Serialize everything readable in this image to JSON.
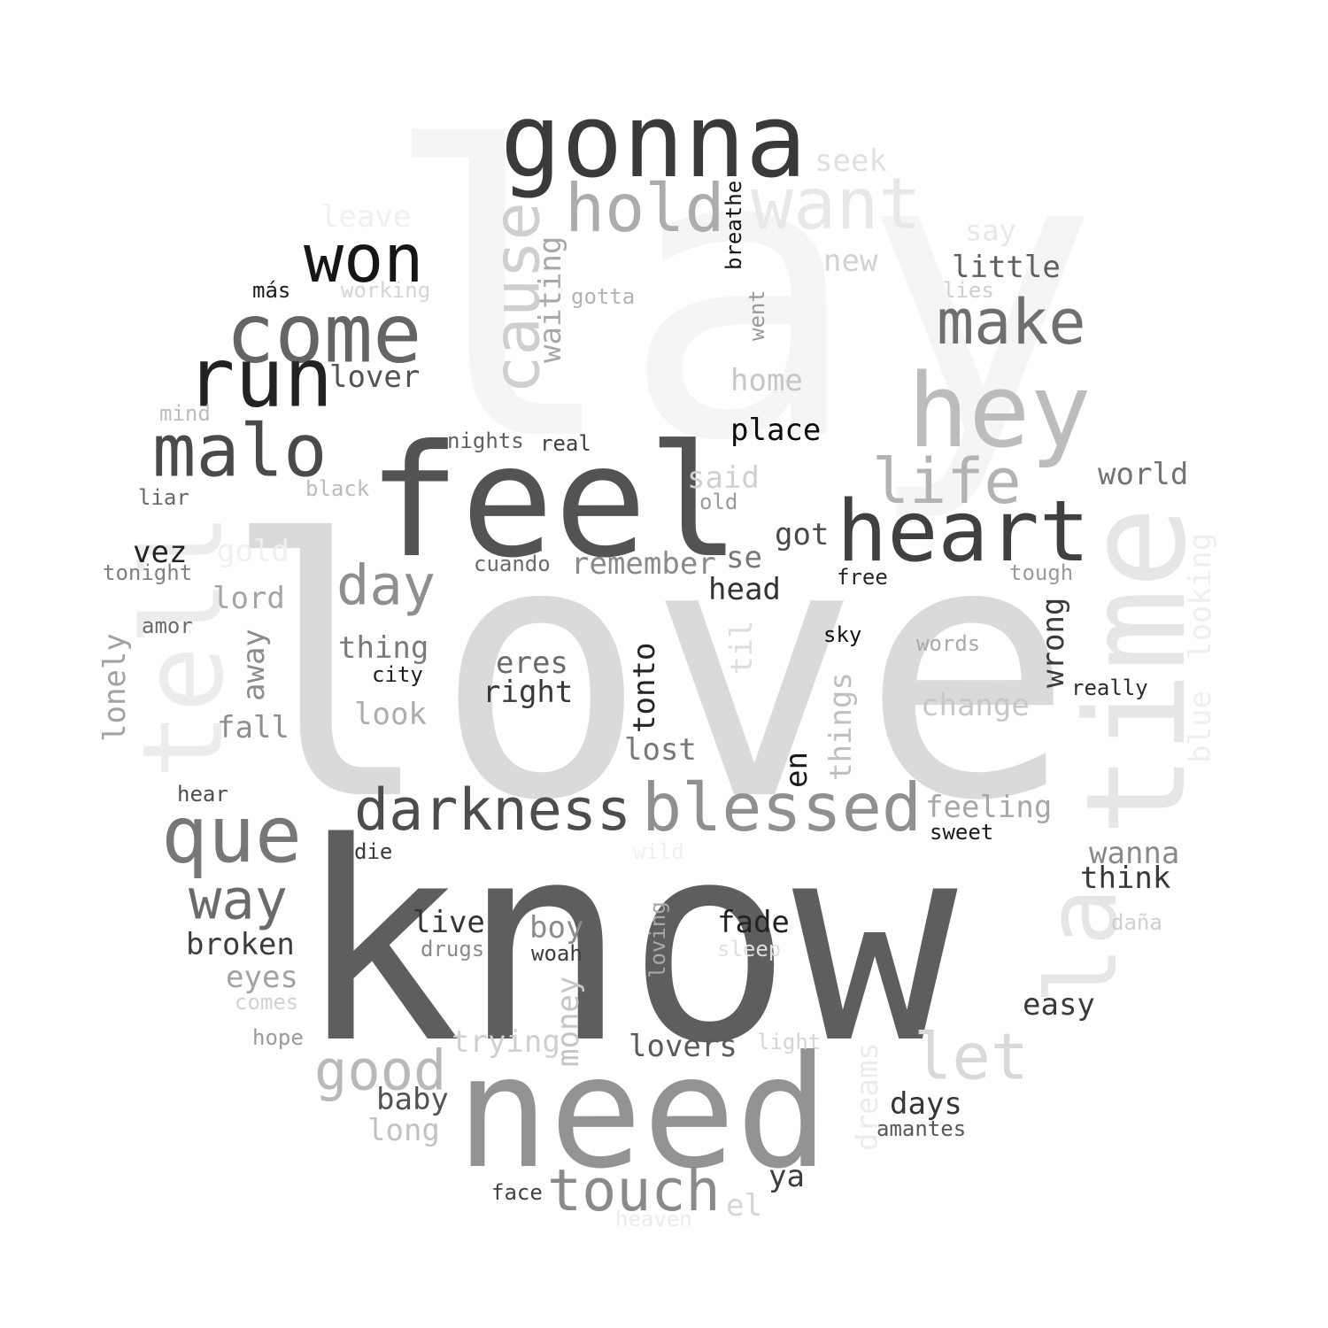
{
  "words": [
    {
      "text": "lay",
      "color": "#f5f5f5"
    },
    {
      "text": "love",
      "color": "#dadada"
    },
    {
      "text": "time",
      "color": "#e6e6e6"
    },
    {
      "text": "tell",
      "color": "#ececec"
    },
    {
      "text": "want",
      "color": "#e8e8e8"
    },
    {
      "text": "la",
      "color": "#e6e6e6"
    },
    {
      "text": "know",
      "color": "#5e5e5e"
    },
    {
      "text": "need",
      "color": "#939393"
    },
    {
      "text": "feel",
      "color": "#535353"
    },
    {
      "text": "gonna",
      "color": "#3a3a3a"
    },
    {
      "text": "hey",
      "color": "#bcbcbc"
    },
    {
      "text": "heart",
      "color": "#404040"
    },
    {
      "text": "blessed",
      "color": "#909090"
    },
    {
      "text": "darkness",
      "color": "#4d4d4d"
    },
    {
      "text": "que",
      "color": "#777777"
    },
    {
      "text": "malo",
      "color": "#4a4a4a"
    },
    {
      "text": "come",
      "color": "#656565"
    },
    {
      "text": "run",
      "color": "#222222"
    },
    {
      "text": "won",
      "color": "#161616"
    },
    {
      "text": "hold",
      "color": "#acacac"
    },
    {
      "text": "cause",
      "color": "#cfcfcf"
    },
    {
      "text": "make",
      "color": "#6f6f6f"
    },
    {
      "text": "life",
      "color": "#b3b3b3"
    },
    {
      "text": "let",
      "color": "#d9d9d9"
    },
    {
      "text": "touch",
      "color": "#8a8a8a"
    },
    {
      "text": "good",
      "color": "#b9b9b9"
    },
    {
      "text": "day",
      "color": "#8f8f8f"
    },
    {
      "text": "way",
      "color": "#6b6b6b"
    },
    {
      "text": "seek",
      "color": "#e0e0e0"
    },
    {
      "text": "say",
      "color": "#e8e8e8"
    },
    {
      "text": "new",
      "color": "#d2d2d2"
    },
    {
      "text": "little",
      "color": "#5f5f5f"
    },
    {
      "text": "lies",
      "color": "#cfcfcf"
    },
    {
      "text": "leave",
      "color": "#f0f0f0"
    },
    {
      "text": "más",
      "color": "#1c1c1c"
    },
    {
      "text": "working",
      "color": "#d5d5d5"
    },
    {
      "text": "waiting",
      "color": "#a8a8a8"
    },
    {
      "text": "gotta",
      "color": "#b2b2b2"
    },
    {
      "text": "breathe",
      "color": "#141414"
    },
    {
      "text": "went",
      "color": "#999999"
    },
    {
      "text": "home",
      "color": "#c6c6c6"
    },
    {
      "text": "lover",
      "color": "#535353"
    },
    {
      "text": "mind",
      "color": "#bdbdbd"
    },
    {
      "text": "nights",
      "color": "#606060"
    },
    {
      "text": "real",
      "color": "#3e3e3e"
    },
    {
      "text": "place",
      "color": "#0c0c0c"
    },
    {
      "text": "world",
      "color": "#747474"
    },
    {
      "text": "said",
      "color": "#d0d0d0"
    },
    {
      "text": "old",
      "color": "#9a9a9a"
    },
    {
      "text": "liar",
      "color": "#686868"
    },
    {
      "text": "black",
      "color": "#bbbbbb"
    },
    {
      "text": "gold",
      "color": "#f0f0f0"
    },
    {
      "text": "vez",
      "color": "#222222"
    },
    {
      "text": "tonight",
      "color": "#808080"
    },
    {
      "text": "cuando",
      "color": "#6a6a6a"
    },
    {
      "text": "remember",
      "color": "#8a8a8a"
    },
    {
      "text": "se",
      "color": "#787878"
    },
    {
      "text": "got",
      "color": "#4a4a4a"
    },
    {
      "text": "free",
      "color": "#262626"
    },
    {
      "text": "tough",
      "color": "#9a9a9a"
    },
    {
      "text": "looking",
      "color": "#efefef"
    },
    {
      "text": "lord",
      "color": "#a5a5a5"
    },
    {
      "text": "head",
      "color": "#323232"
    },
    {
      "text": "amor",
      "color": "#6a6a6a"
    },
    {
      "text": "sky",
      "color": "#111111"
    },
    {
      "text": "wrong",
      "color": "#3a3a3a"
    },
    {
      "text": "words",
      "color": "#a9a9a9"
    },
    {
      "text": "lonely",
      "color": "#a2a2a2"
    },
    {
      "text": "away",
      "color": "#8c8c8c"
    },
    {
      "text": "thing",
      "color": "#7a7a7a"
    },
    {
      "text": "eres",
      "color": "#6a6a6a"
    },
    {
      "text": "city",
      "color": "#1d1d1d"
    },
    {
      "text": "right",
      "color": "#383838"
    },
    {
      "text": "tonto",
      "color": "#242424"
    },
    {
      "text": "til",
      "color": "#dddddd"
    },
    {
      "text": "really",
      "color": "#2b2b2b"
    },
    {
      "text": "things",
      "color": "#bfbfbf"
    },
    {
      "text": "change",
      "color": "#c7c7c7"
    },
    {
      "text": "blue",
      "color": "#efefef"
    },
    {
      "text": "look",
      "color": "#adadad"
    },
    {
      "text": "fall",
      "color": "#8f8f8f"
    },
    {
      "text": "lost",
      "color": "#777777"
    },
    {
      "text": "en",
      "color": "#1a1a1a"
    },
    {
      "text": "hear",
      "color": "#4d4d4d"
    },
    {
      "text": "feeling",
      "color": "#a7a7a7"
    },
    {
      "text": "sweet",
      "color": "#1a1a1a"
    },
    {
      "text": "die",
      "color": "#3a3a3a"
    },
    {
      "text": "wild",
      "color": "#f0f0f0"
    },
    {
      "text": "wanna",
      "color": "#8a8a8a"
    },
    {
      "text": "think",
      "color": "#383838"
    },
    {
      "text": "live",
      "color": "#333333"
    },
    {
      "text": "boy",
      "color": "#8c8c8c"
    },
    {
      "text": "fade",
      "color": "#222222"
    },
    {
      "text": "broken",
      "color": "#3c3c3c"
    },
    {
      "text": "drugs",
      "color": "#8a8a8a"
    },
    {
      "text": "woah",
      "color": "#3c3c3c"
    },
    {
      "text": "loving",
      "color": "#a8a8a8"
    },
    {
      "text": "sleep",
      "color": "#dfdfdf"
    },
    {
      "text": "daña",
      "color": "#cfcfcf"
    },
    {
      "text": "eyes",
      "color": "#a2a2a2"
    },
    {
      "text": "comes",
      "color": "#d2d2d2"
    },
    {
      "text": "money",
      "color": "#c5c5c5"
    },
    {
      "text": "easy",
      "color": "#3a3a3a"
    },
    {
      "text": "hope",
      "color": "#9a9a9a"
    },
    {
      "text": "trying",
      "color": "#cfcfcf"
    },
    {
      "text": "lovers",
      "color": "#5a5a5a"
    },
    {
      "text": "light",
      "color": "#d5d5d5"
    },
    {
      "text": "dreams",
      "color": "#ececec"
    },
    {
      "text": "baby",
      "color": "#535353"
    },
    {
      "text": "days",
      "color": "#363636"
    },
    {
      "text": "long",
      "color": "#c2c2c2"
    },
    {
      "text": "amantes",
      "color": "#585858"
    },
    {
      "text": "ya",
      "color": "#3d3d3d"
    },
    {
      "text": "face",
      "color": "#434343"
    },
    {
      "text": "el",
      "color": "#d5d5d5"
    },
    {
      "text": "heaven",
      "color": "#ebebeb"
    }
  ]
}
